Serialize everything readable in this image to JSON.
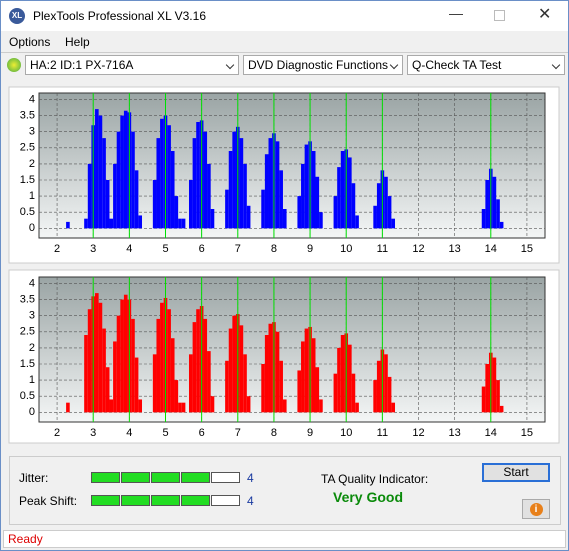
{
  "window": {
    "title": "PlexTools Professional XL V3.16",
    "menu": [
      "Options",
      "Help"
    ],
    "toolbar": {
      "drive": "HA:2 ID:1  PX-716A",
      "function": "DVD Diagnostic Functions",
      "test": "Q-Check TA Test"
    }
  },
  "charts": [
    {
      "type": "bar",
      "color": "#0000ff",
      "xlim": [
        1.5,
        15.5
      ],
      "ylim": [
        -0.3,
        4.2
      ],
      "xticks": [
        2,
        3,
        4,
        5,
        6,
        7,
        8,
        9,
        10,
        11,
        12,
        13,
        14,
        15
      ],
      "yticks": [
        0,
        0.5,
        1,
        1.5,
        2,
        2.5,
        3,
        3.5,
        4
      ],
      "grid": true,
      "markers": [
        3,
        4,
        5,
        6,
        7,
        8,
        9,
        10,
        11,
        14
      ],
      "x": [
        2.3,
        2.8,
        2.9,
        3.0,
        3.1,
        3.2,
        3.3,
        3.4,
        3.5,
        3.6,
        3.7,
        3.8,
        3.9,
        4.0,
        4.1,
        4.2,
        4.3,
        4.7,
        4.8,
        4.9,
        5.0,
        5.1,
        5.2,
        5.3,
        5.4,
        5.5,
        5.7,
        5.8,
        5.9,
        6.0,
        6.1,
        6.2,
        6.3,
        6.7,
        6.8,
        6.9,
        7.0,
        7.1,
        7.2,
        7.3,
        7.7,
        7.8,
        7.9,
        8.0,
        8.1,
        8.2,
        8.3,
        8.7,
        8.8,
        8.9,
        9.0,
        9.1,
        9.2,
        9.3,
        9.7,
        9.8,
        9.9,
        10.0,
        10.1,
        10.2,
        10.3,
        10.8,
        10.9,
        11.0,
        11.1,
        11.2,
        11.3,
        13.8,
        13.9,
        14.0,
        14.1,
        14.2,
        14.3
      ],
      "values": [
        0.2,
        0.3,
        2.0,
        3.2,
        3.7,
        3.5,
        2.8,
        1.5,
        0.3,
        2.0,
        3.0,
        3.5,
        3.65,
        3.6,
        3.0,
        1.8,
        0.4,
        1.5,
        2.8,
        3.4,
        3.5,
        3.2,
        2.4,
        1.0,
        0.3,
        0.3,
        1.5,
        2.8,
        3.3,
        3.35,
        3.0,
        2.0,
        0.6,
        1.2,
        2.4,
        3.0,
        3.15,
        2.8,
        2.0,
        0.7,
        1.2,
        2.3,
        2.8,
        2.95,
        2.7,
        1.8,
        0.6,
        1.0,
        2.0,
        2.6,
        2.7,
        2.4,
        1.6,
        0.5,
        1.0,
        1.9,
        2.4,
        2.45,
        2.2,
        1.4,
        0.4,
        0.7,
        1.4,
        1.8,
        1.6,
        1.0,
        0.3,
        0.6,
        1.5,
        1.85,
        1.6,
        0.9,
        0.2
      ]
    },
    {
      "type": "bar",
      "color": "#ff0000",
      "xlim": [
        1.5,
        15.5
      ],
      "ylim": [
        -0.3,
        4.2
      ],
      "xticks": [
        2,
        3,
        4,
        5,
        6,
        7,
        8,
        9,
        10,
        11,
        12,
        13,
        14,
        15
      ],
      "yticks": [
        0,
        0.5,
        1,
        1.5,
        2,
        2.5,
        3,
        3.5,
        4
      ],
      "grid": true,
      "markers": [
        3,
        4,
        5,
        6,
        7,
        8,
        9,
        10,
        11,
        14
      ],
      "x": [
        2.3,
        2.8,
        2.9,
        3.0,
        3.1,
        3.2,
        3.3,
        3.4,
        3.5,
        3.6,
        3.7,
        3.8,
        3.9,
        4.0,
        4.1,
        4.2,
        4.3,
        4.7,
        4.8,
        4.9,
        5.0,
        5.1,
        5.2,
        5.3,
        5.4,
        5.5,
        5.7,
        5.8,
        5.9,
        6.0,
        6.1,
        6.2,
        6.3,
        6.7,
        6.8,
        6.9,
        7.0,
        7.1,
        7.2,
        7.3,
        7.7,
        7.8,
        7.9,
        8.0,
        8.1,
        8.2,
        8.3,
        8.7,
        8.8,
        8.9,
        9.0,
        9.1,
        9.2,
        9.3,
        9.7,
        9.8,
        9.9,
        10.0,
        10.1,
        10.2,
        10.3,
        10.8,
        10.9,
        11.0,
        11.1,
        11.2,
        11.3,
        13.8,
        13.9,
        14.0,
        14.1,
        14.2,
        14.3
      ],
      "values": [
        0.3,
        2.4,
        3.2,
        3.6,
        3.7,
        3.4,
        2.6,
        1.4,
        0.4,
        2.2,
        3.0,
        3.5,
        3.65,
        3.5,
        2.9,
        1.7,
        0.4,
        1.8,
        2.9,
        3.4,
        3.55,
        3.2,
        2.3,
        1.0,
        0.3,
        0.3,
        1.8,
        2.8,
        3.2,
        3.3,
        2.9,
        1.9,
        0.5,
        1.6,
        2.6,
        3.0,
        3.05,
        2.7,
        1.8,
        0.5,
        1.5,
        2.4,
        2.75,
        2.8,
        2.5,
        1.6,
        0.4,
        1.3,
        2.2,
        2.6,
        2.65,
        2.3,
        1.4,
        0.4,
        1.2,
        2.0,
        2.4,
        2.45,
        2.1,
        1.2,
        0.3,
        1.0,
        1.6,
        1.95,
        1.8,
        1.1,
        0.3,
        0.8,
        1.5,
        1.85,
        1.7,
        1.0,
        0.2
      ]
    }
  ],
  "bottom": {
    "jitter": {
      "label": "Jitter:",
      "value": 4
    },
    "peak_shift": {
      "label": "Peak Shift:",
      "value": 4
    },
    "ta_label": "TA Quality Indicator:",
    "ta_result": "Very Good",
    "start": "Start"
  },
  "status": "Ready"
}
